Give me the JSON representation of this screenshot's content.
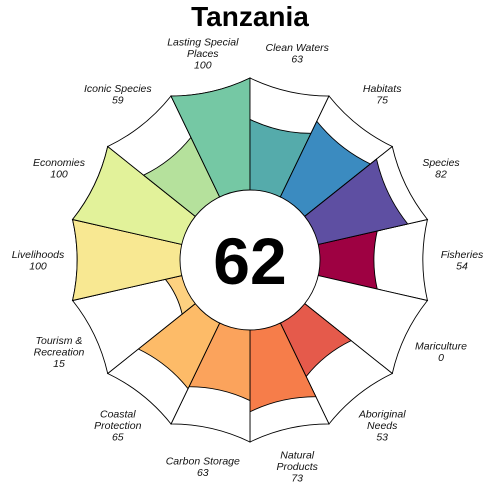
{
  "chart_data": {
    "type": "flower",
    "title": "Tanzania",
    "score": 62,
    "range": [
      0,
      100
    ],
    "petals": [
      {
        "name": "Fisheries",
        "value": 54,
        "color": "#9e0142"
      },
      {
        "name": "Mariculture",
        "value": 0,
        "color": "#c72c4b"
      },
      {
        "name": "Aboriginal Needs",
        "value": 53,
        "color": "#e55a4b"
      },
      {
        "name": "Natural Products",
        "value": 73,
        "color": "#f67d4a"
      },
      {
        "name": "Carbon Storage",
        "value": 63,
        "color": "#fba35c"
      },
      {
        "name": "Coastal Protection",
        "value": 65,
        "color": "#fdbb68"
      },
      {
        "name": "Tourism & Recreation",
        "value": 15,
        "color": "#fdd180"
      },
      {
        "name": "Livelihoods",
        "value": 100,
        "color": "#f8e892"
      },
      {
        "name": "Economies",
        "value": 100,
        "color": "#e2f29a"
      },
      {
        "name": "Iconic Species",
        "value": 59,
        "color": "#b5e19c"
      },
      {
        "name": "Lasting Special Places",
        "value": 100,
        "color": "#75c8a4"
      },
      {
        "name": "Clean Waters",
        "value": 63,
        "color": "#55abab"
      },
      {
        "name": "Habitats",
        "value": 75,
        "color": "#3b8bc0"
      },
      {
        "name": "Species",
        "value": 82,
        "color": "#5e4fa2"
      }
    ]
  }
}
